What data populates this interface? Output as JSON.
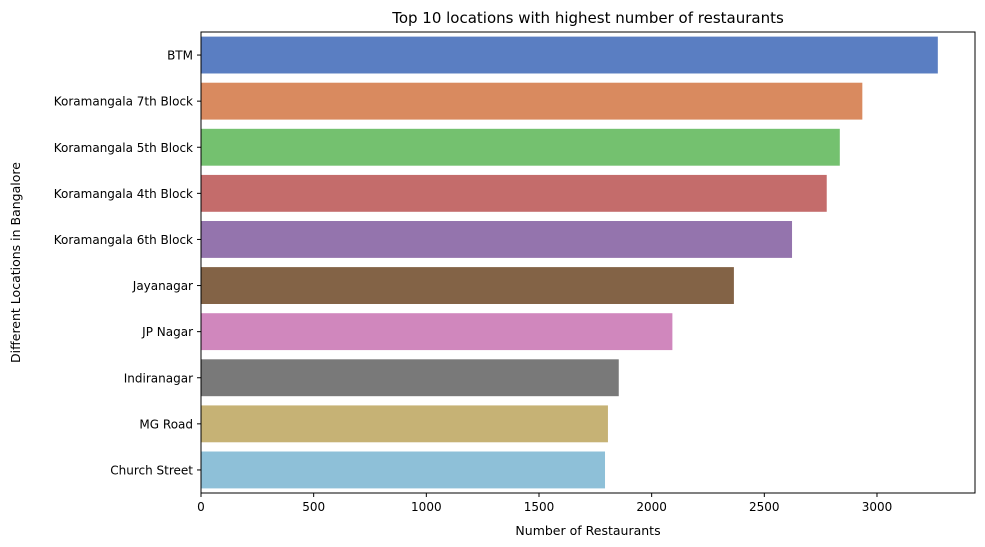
{
  "chart_data": {
    "type": "bar",
    "orientation": "horizontal",
    "title": "Top 10 locations with highest number of restaurants",
    "xlabel": "Number of Restaurants",
    "ylabel": "Different Locations in Bangalore",
    "categories": [
      "BTM",
      "Koramangala 7th Block",
      "Koramangala 5th Block",
      "Koramangala 4th Block",
      "Koramangala 6th Block",
      "Jayanagar",
      "JP Nagar",
      "Indiranagar",
      "MG Road",
      "Church Street"
    ],
    "values": [
      3270,
      2935,
      2835,
      2777,
      2623,
      2365,
      2092,
      1854,
      1806,
      1793
    ],
    "colors": [
      "#5a7ec2",
      "#d98a5f",
      "#74c16f",
      "#c46c6b",
      "#9474ad",
      "#836346",
      "#d087bd",
      "#797979",
      "#c6b275",
      "#8ec0d8"
    ],
    "xlim": [
      0,
      3435
    ],
    "xticks": [
      0,
      500,
      1000,
      1500,
      2000,
      2500,
      3000
    ],
    "grid": false,
    "legend": "none"
  }
}
